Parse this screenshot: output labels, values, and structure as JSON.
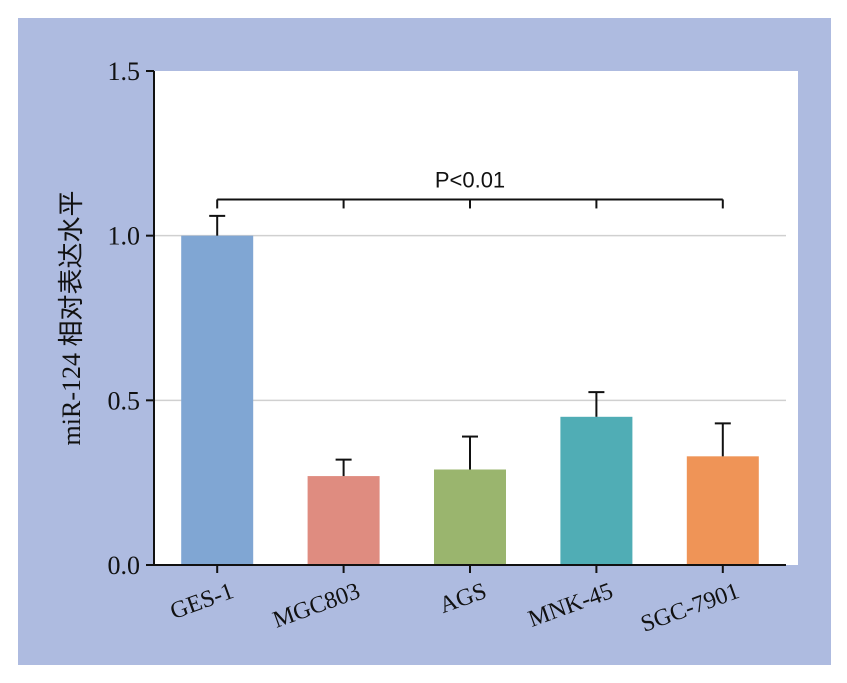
{
  "chart_data": {
    "type": "bar",
    "title": "",
    "xlabel": "",
    "ylabel": "miR-124 相对表达水平",
    "categories": [
      "GES-1",
      "MGC803",
      "AGS",
      "MNK-45",
      "SGC-7901"
    ],
    "values": [
      1.0,
      0.27,
      0.29,
      0.45,
      0.33
    ],
    "errors": [
      0.06,
      0.05,
      0.1,
      0.075,
      0.1
    ],
    "colors": [
      "#80a6d3",
      "#df8c80",
      "#9ab56e",
      "#50adb5",
      "#ef9457"
    ],
    "ylim": [
      0,
      1.5
    ],
    "yticks": [
      "0.0",
      "0.5",
      "1.0",
      "1.5"
    ],
    "grid": true,
    "annotation": {
      "text": "P<0.01",
      "y": 1.11
    }
  }
}
